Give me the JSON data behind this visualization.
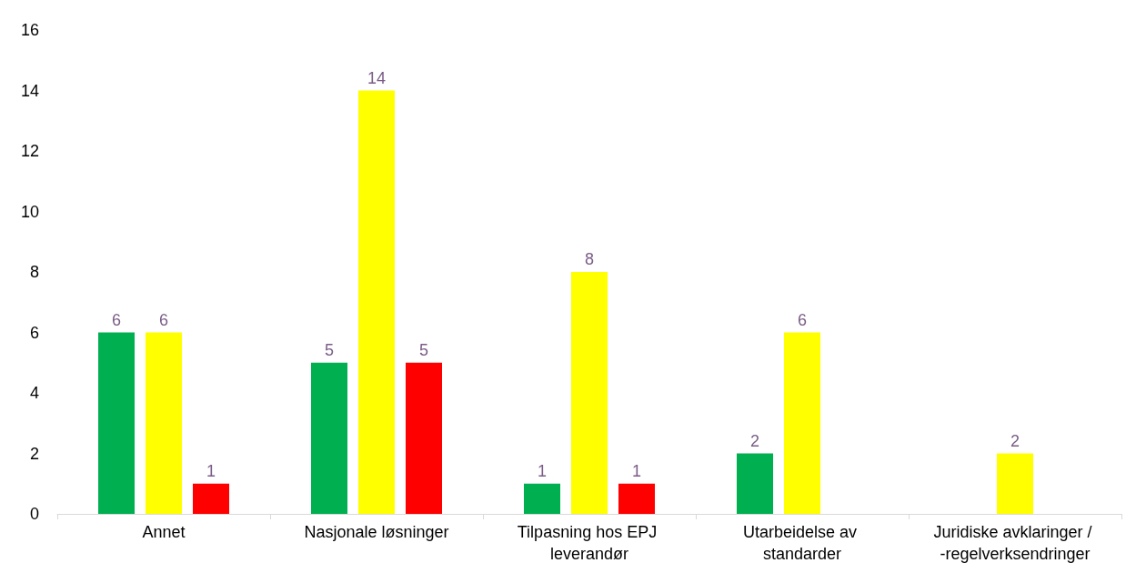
{
  "chart_data": {
    "type": "bar",
    "categories": [
      "Annet",
      "Nasjonale løsninger",
      "Tilpasning hos EPJ leverandør",
      "Utarbeidelse av standarder",
      "Juridiske avklaringer / -regelverksendringer"
    ],
    "series": [
      {
        "color": "#00b050",
        "values": [
          6,
          5,
          1,
          2,
          null
        ]
      },
      {
        "color": "#ffff00",
        "values": [
          6,
          14,
          8,
          6,
          2
        ]
      },
      {
        "color": "#ff0000",
        "values": [
          1,
          5,
          1,
          null,
          null
        ]
      }
    ],
    "ylim": [
      0,
      16
    ],
    "yticks": [
      0,
      2,
      4,
      6,
      8,
      10,
      12,
      14,
      16
    ],
    "grid": false,
    "data_labels": true
  }
}
